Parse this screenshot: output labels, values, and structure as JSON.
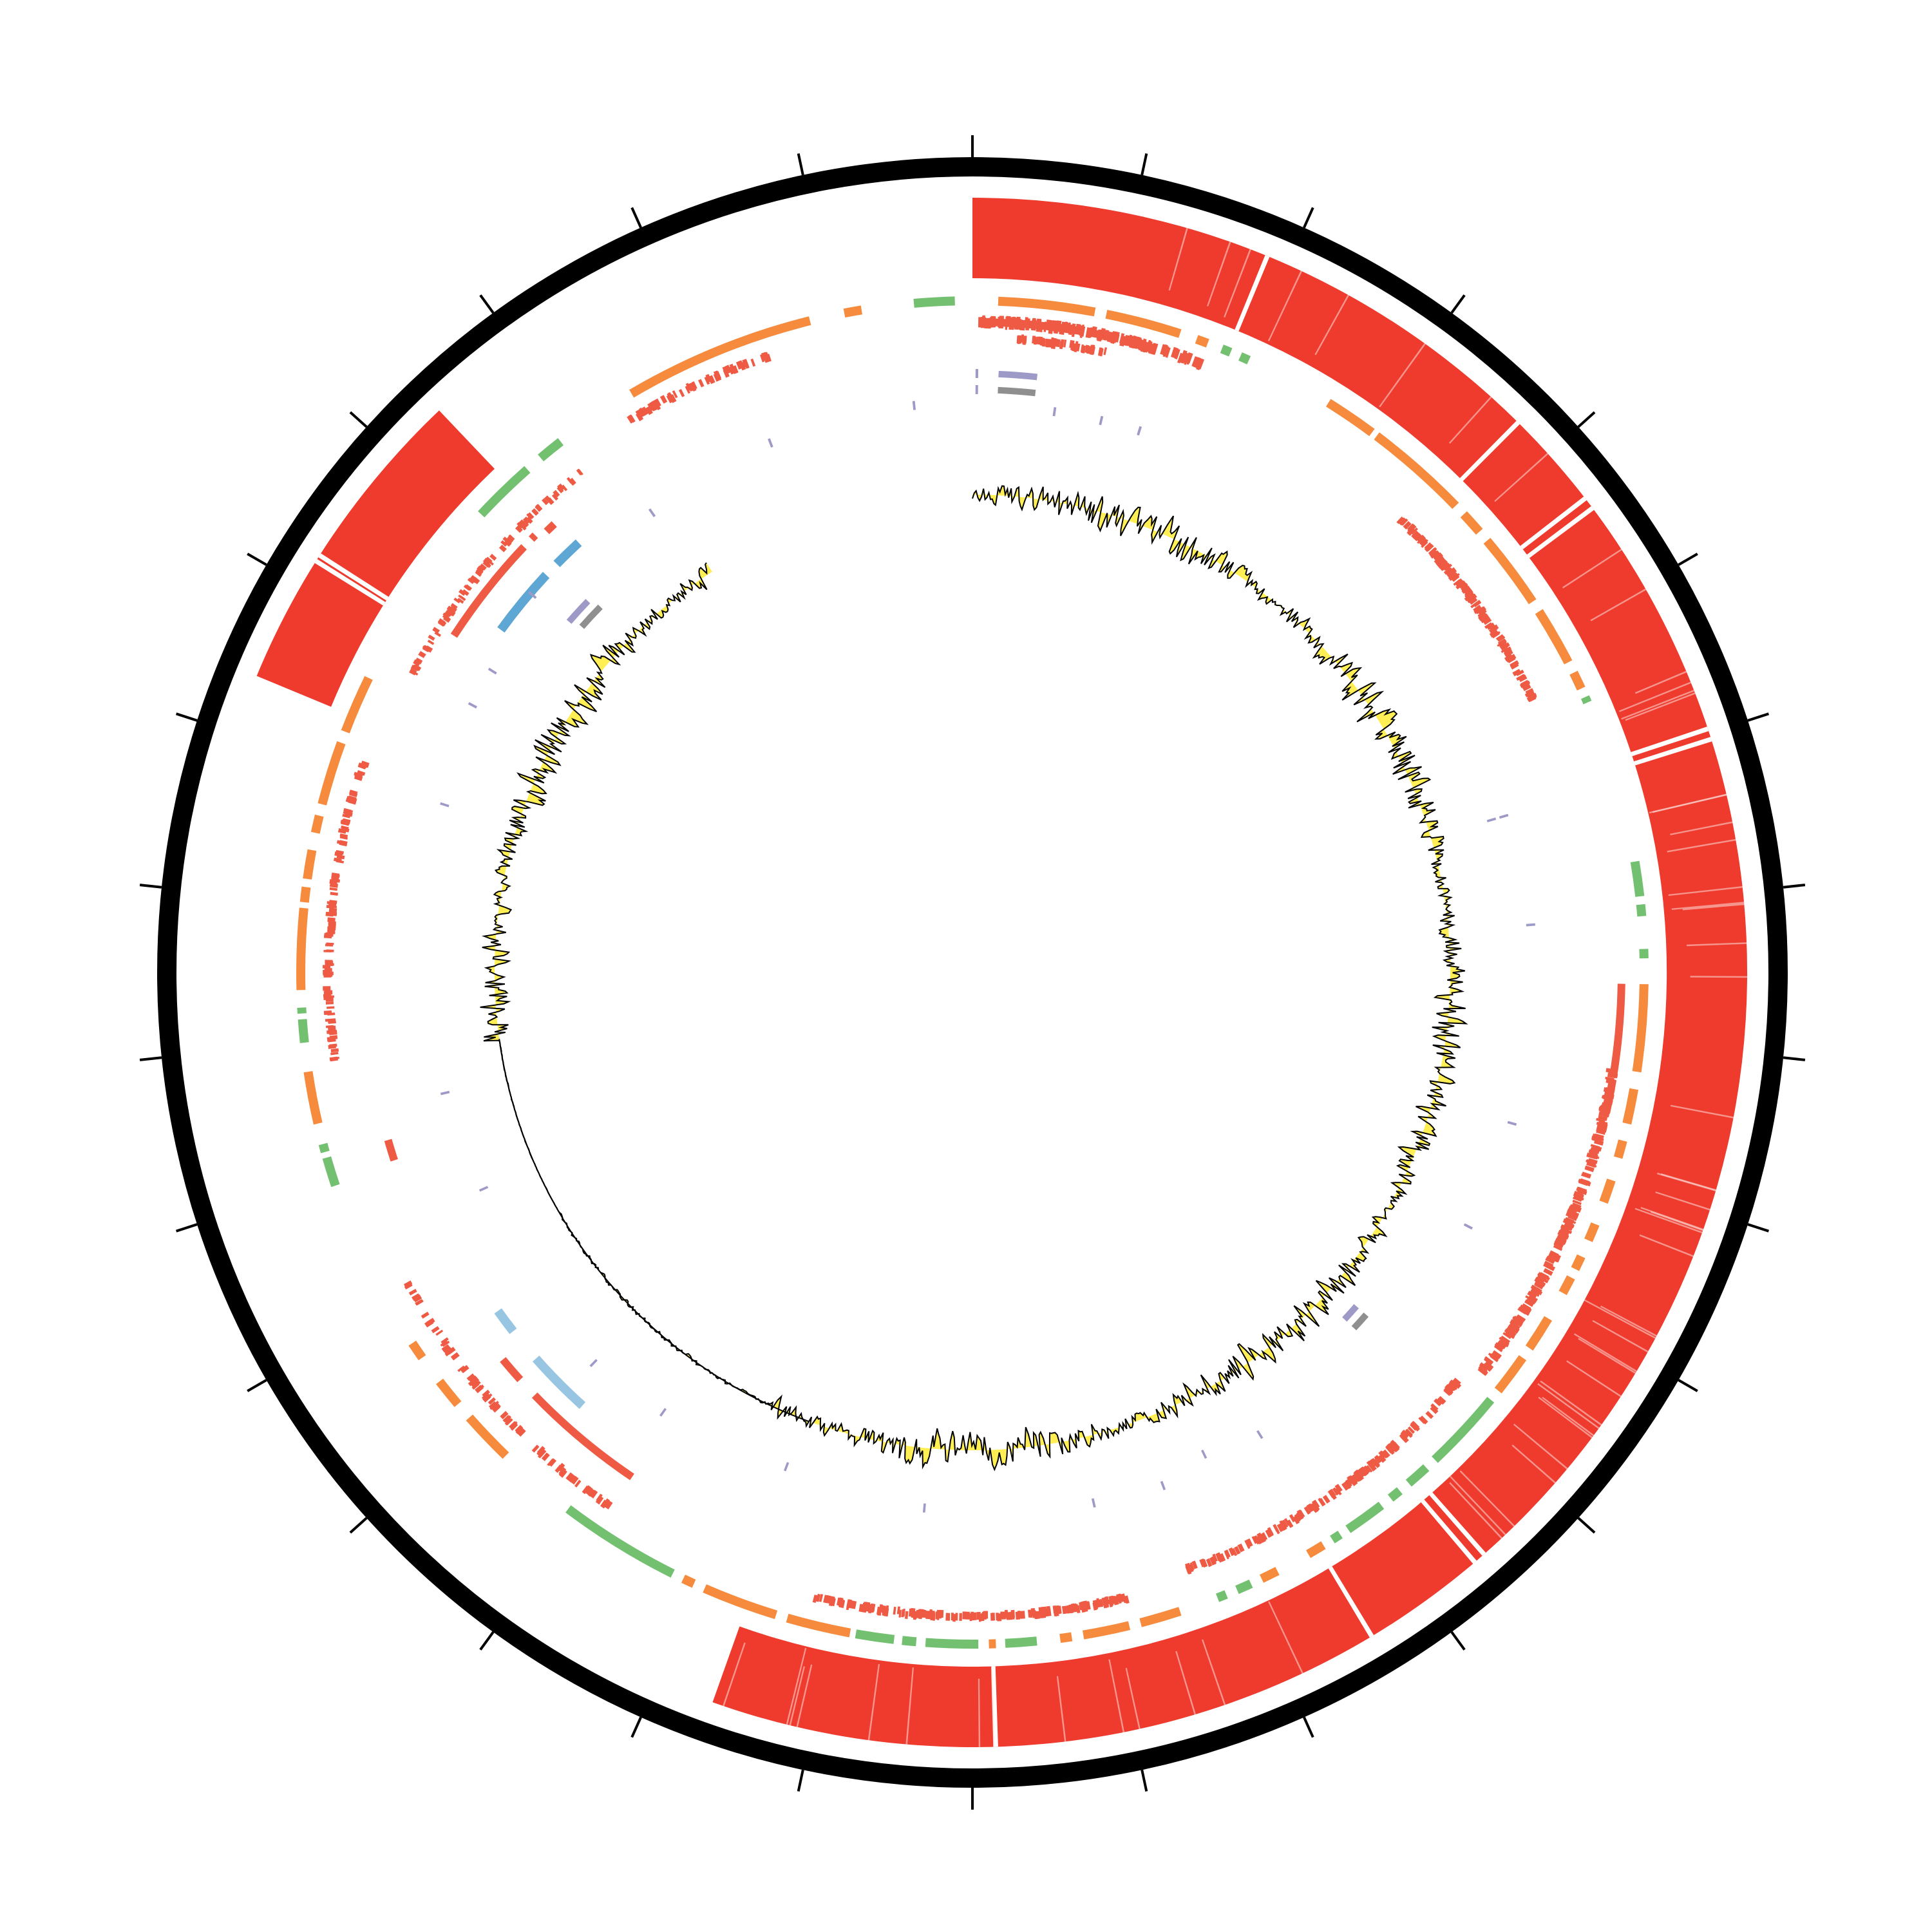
{
  "diagram": {
    "type": "circular-genome-map",
    "background_color": "#ffffff",
    "track_colors": {
      "backbone": "#000000",
      "identity": "#ee3b2e",
      "identity_gap": "#fde0dc",
      "features_orange": "#f68b3e",
      "features_green": "#72c070",
      "features_red": "#ef5a44",
      "features_blue": "#5ea6d3",
      "features_lightblue": "#98c6e2",
      "features_purple": "#9e9ac8",
      "features_grey": "#8f8f8f",
      "skew_fill": "#ffef55",
      "skew_line": "#000000"
    }
  }
}
